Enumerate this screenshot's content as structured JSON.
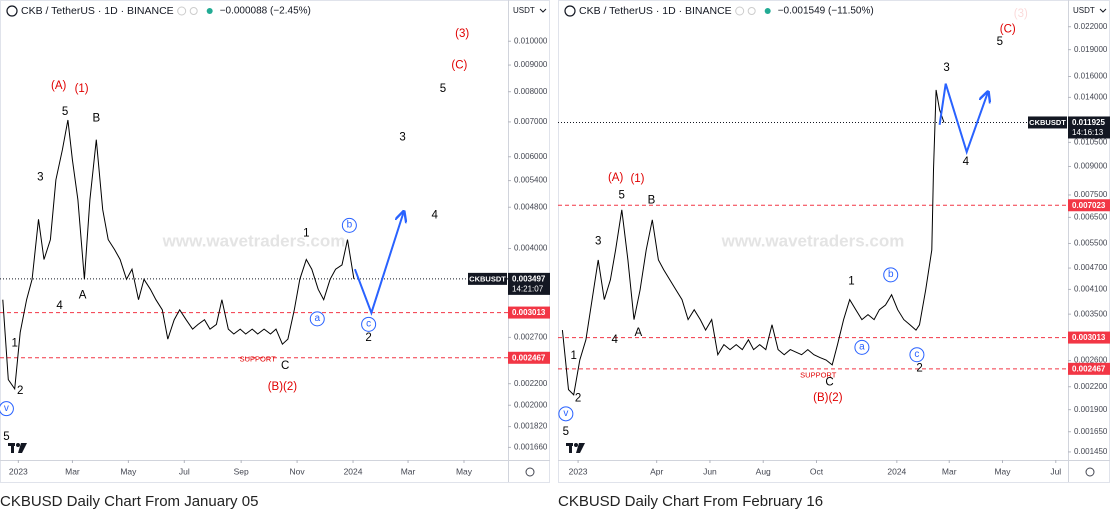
{
  "chart_data": [
    {
      "type": "line",
      "log_scale": true,
      "grid": false,
      "symbol": "CKB / TetherUS · 1D · BINANCE",
      "change": "−0.000088 (−2.45%)",
      "currency": "USDT",
      "caption": "CKBUSD Daily Chart From January 05",
      "watermark": "www.wavetraders.com",
      "color": "#000000",
      "x": [
        -17,
        -11,
        -4,
        2,
        9,
        15,
        22,
        28,
        35,
        41,
        48,
        54,
        59,
        65,
        72,
        78,
        85,
        92,
        98,
        105,
        111,
        118,
        124,
        131,
        137,
        144,
        150,
        157,
        163,
        170,
        176,
        183,
        190,
        196,
        203,
        209,
        216,
        222,
        229,
        235,
        242,
        248,
        255,
        261,
        268,
        275,
        281,
        288,
        294,
        301,
        307,
        314,
        320,
        327,
        333,
        340,
        346,
        353,
        359,
        366
      ],
      "values": [
        0.00319,
        0.00224,
        0.00215,
        0.00276,
        0.00319,
        0.00349,
        0.00455,
        0.00381,
        0.00416,
        0.00542,
        0.00619,
        0.00706,
        0.00592,
        0.00496,
        0.00349,
        0.00496,
        0.00647,
        0.00475,
        0.00416,
        0.00398,
        0.00381,
        0.00349,
        0.00365,
        0.00319,
        0.00349,
        0.00334,
        0.00319,
        0.00305,
        0.00268,
        0.00292,
        0.00305,
        0.00292,
        0.0028,
        0.00286,
        0.00292,
        0.0028,
        0.00286,
        0.00319,
        0.0028,
        0.00274,
        0.0028,
        0.00274,
        0.0028,
        0.00274,
        0.0028,
        0.00274,
        0.0028,
        0.00262,
        0.00268,
        0.00305,
        0.00349,
        0.00381,
        0.00365,
        0.00334,
        0.00319,
        0.00349,
        0.00365,
        0.00372,
        0.00416,
        0.003497
      ],
      "xlim": [
        -20,
        534
      ],
      "ylim": [
        0.00157,
        0.012
      ],
      "xticks": [
        {
          "value": 0,
          "label": "2023"
        },
        {
          "value": 59,
          "label": "Mar"
        },
        {
          "value": 120,
          "label": "May"
        },
        {
          "value": 181,
          "label": "Jul"
        },
        {
          "value": 243,
          "label": "Sep"
        },
        {
          "value": 304,
          "label": "Nov"
        },
        {
          "value": 365,
          "label": "2024"
        },
        {
          "value": 425,
          "label": "Mar"
        },
        {
          "value": 486,
          "label": "May"
        }
      ],
      "yticks": [
        {
          "value": 0.01,
          "label": "0.010000"
        },
        {
          "value": 0.009,
          "label": "0.009000"
        },
        {
          "value": 0.008,
          "label": "0.008000"
        },
        {
          "value": 0.007,
          "label": "0.007000"
        },
        {
          "value": 0.006,
          "label": "0.006000"
        },
        {
          "value": 0.0054,
          "label": "0.005400"
        },
        {
          "value": 0.0048,
          "label": "0.004800"
        },
        {
          "value": 0.004,
          "label": "0.004000"
        },
        {
          "value": 0.0027,
          "label": "0.002700"
        },
        {
          "value": 0.0022,
          "label": "0.002200"
        },
        {
          "value": 0.002,
          "label": "0.002000"
        },
        {
          "value": 0.00182,
          "label": "0.001820"
        },
        {
          "value": 0.00166,
          "label": "0.001660"
        }
      ],
      "levels": [
        {
          "value": 0.003013,
          "color": "#f23645"
        },
        {
          "value": 0.002467,
          "color": "#f23645"
        }
      ],
      "last_price": {
        "value": 0.003497,
        "name": "CKBUSDT",
        "timer": "14:21:07"
      },
      "annotations": [
        {
          "text": "(A)",
          "x": 44,
          "y": 0.0082,
          "color": "#e00000"
        },
        {
          "text": "(1)",
          "x": 69,
          "y": 0.0081,
          "color": "#e00000"
        },
        {
          "text": "5",
          "x": 51,
          "y": 0.00731,
          "color": "#000000"
        },
        {
          "text": "B",
          "x": 85,
          "y": 0.0071,
          "color": "#000000"
        },
        {
          "text": "3",
          "x": 24,
          "y": 0.00547,
          "color": "#000000"
        },
        {
          "text": "4",
          "x": 45,
          "y": 0.0031,
          "color": "#000000"
        },
        {
          "text": "A",
          "x": 70,
          "y": 0.00325,
          "color": "#000000"
        },
        {
          "text": "1",
          "x": -4,
          "y": 0.00263,
          "color": "#000000"
        },
        {
          "text": "2",
          "x": 2,
          "y": 0.00213,
          "color": "#000000"
        },
        {
          "text": "v",
          "x": -13,
          "y": 0.00197,
          "color": "#2962ff",
          "circle": true
        },
        {
          "text": "5",
          "x": -13,
          "y": 0.00174,
          "color": "#000000"
        },
        {
          "text": "SUPPORT",
          "x": 261,
          "y": 0.00245,
          "color": "#e00000",
          "small": true
        },
        {
          "text": "C",
          "x": 291,
          "y": 0.00238,
          "color": "#000000"
        },
        {
          "text": "(B)(2)",
          "x": 288,
          "y": 0.00217,
          "color": "#e00000"
        },
        {
          "text": "1",
          "x": 314,
          "y": 0.00427,
          "color": "#000000"
        },
        {
          "text": "a",
          "x": 326,
          "y": 0.00293,
          "color": "#2962ff",
          "circle": true
        },
        {
          "text": "b",
          "x": 361,
          "y": 0.00443,
          "color": "#2962ff",
          "circle": true
        },
        {
          "text": "c",
          "x": 382,
          "y": 0.00286,
          "color": "#2962ff",
          "circle": true
        },
        {
          "text": "2",
          "x": 382,
          "y": 0.00269,
          "color": "#000000"
        },
        {
          "text": "3",
          "x": 419,
          "y": 0.00653,
          "color": "#000000"
        },
        {
          "text": "4",
          "x": 454,
          "y": 0.00463,
          "color": "#000000"
        },
        {
          "text": "5",
          "x": 463,
          "y": 0.0081,
          "color": "#000000"
        },
        {
          "text": "(3)",
          "x": 484,
          "y": 0.01033,
          "color": "#e00000"
        },
        {
          "text": "(C)",
          "x": 481,
          "y": 0.00898,
          "color": "#e00000"
        }
      ],
      "projection": {
        "color": "#2962ff",
        "x": [
          367,
          385,
          420
        ],
        "y": [
          0.00365,
          0.00301,
          0.00469
        ]
      }
    },
    {
      "type": "line",
      "log_scale": true,
      "grid": false,
      "symbol": "CKB / TetherUS · 1D · BINANCE",
      "change": "−0.001549 (−11.50%)",
      "currency": "USDT",
      "caption": "CKBUSD Daily Chart From February 16",
      "watermark": "www.wavetraders.com",
      "color": "#000000",
      "x": [
        -18,
        -11,
        -5,
        2,
        9,
        16,
        23,
        30,
        37,
        43,
        50,
        57,
        64,
        71,
        78,
        85,
        92,
        98,
        105,
        112,
        119,
        126,
        133,
        140,
        146,
        153,
        160,
        167,
        174,
        181,
        188,
        195,
        201,
        208,
        215,
        222,
        229,
        236,
        243,
        249,
        256,
        263,
        270,
        277,
        284,
        291,
        297,
        304,
        311,
        318,
        325,
        332,
        339,
        345,
        352,
        359,
        366,
        373,
        380,
        387,
        391,
        398,
        405,
        407,
        410,
        414,
        419
      ],
      "values": [
        0.00316,
        0.00216,
        0.00209,
        0.00261,
        0.00297,
        0.00384,
        0.00495,
        0.00384,
        0.00436,
        0.00528,
        0.00682,
        0.00495,
        0.00338,
        0.00409,
        0.00528,
        0.0064,
        0.00495,
        0.00465,
        0.00436,
        0.00409,
        0.00384,
        0.00338,
        0.0036,
        0.00338,
        0.00316,
        0.00338,
        0.0027,
        0.00288,
        0.00279,
        0.00288,
        0.00279,
        0.00297,
        0.00279,
        0.00288,
        0.00279,
        0.00327,
        0.00279,
        0.0027,
        0.00279,
        0.00275,
        0.0027,
        0.00279,
        0.0027,
        0.00265,
        0.00261,
        0.00253,
        0.00288,
        0.00338,
        0.00384,
        0.0036,
        0.00338,
        0.00349,
        0.00338,
        0.0036,
        0.00371,
        0.00396,
        0.0036,
        0.00338,
        0.00327,
        0.00316,
        0.00327,
        0.00409,
        0.00528,
        0.00881,
        0.01469,
        0.01292,
        0.011925
      ],
      "xlim": [
        -23,
        561
      ],
      "ylim": [
        0.001377,
        0.0261
      ],
      "xticks": [
        {
          "value": 0,
          "label": "2023"
        },
        {
          "value": 90,
          "label": "Apr"
        },
        {
          "value": 151,
          "label": "Jun"
        },
        {
          "value": 212,
          "label": "Aug"
        },
        {
          "value": 273,
          "label": "Oct"
        },
        {
          "value": 365,
          "label": "2024"
        },
        {
          "value": 425,
          "label": "Mar"
        },
        {
          "value": 486,
          "label": "May"
        },
        {
          "value": 547,
          "label": "Jul"
        }
      ],
      "yticks": [
        {
          "value": 0.022,
          "label": "0.022000"
        },
        {
          "value": 0.019,
          "label": "0.019000"
        },
        {
          "value": 0.016,
          "label": "0.016000"
        },
        {
          "value": 0.014,
          "label": "0.014000"
        },
        {
          "value": 0.0105,
          "label": "0.010500"
        },
        {
          "value": 0.009,
          "label": "0.009000"
        },
        {
          "value": 0.0075,
          "label": "0.007500"
        },
        {
          "value": 0.0065,
          "label": "0.006500"
        },
        {
          "value": 0.0055,
          "label": "0.005500"
        },
        {
          "value": 0.0047,
          "label": "0.004700"
        },
        {
          "value": 0.0041,
          "label": "0.004100"
        },
        {
          "value": 0.0035,
          "label": "0.003500"
        },
        {
          "value": 0.0026,
          "label": "0.002600"
        },
        {
          "value": 0.0022,
          "label": "0.002200"
        },
        {
          "value": 0.0019,
          "label": "0.001900"
        },
        {
          "value": 0.00165,
          "label": "0.001650"
        },
        {
          "value": 0.00145,
          "label": "0.001450"
        }
      ],
      "levels": [
        {
          "value": 0.007023,
          "color": "#f23645"
        },
        {
          "value": 0.003013,
          "color": "#f23645"
        },
        {
          "value": 0.002467,
          "color": "#f23645"
        }
      ],
      "last_price": {
        "value": 0.011925,
        "name": "CKBUSDT",
        "timer": "14:16:13"
      },
      "annotations": [
        {
          "text": "(A)",
          "x": 43,
          "y": 0.00837,
          "color": "#e00000"
        },
        {
          "text": "(1)",
          "x": 68,
          "y": 0.0083,
          "color": "#e00000"
        },
        {
          "text": "5",
          "x": 50,
          "y": 0.00747,
          "color": "#000000"
        },
        {
          "text": "B",
          "x": 84,
          "y": 0.00723,
          "color": "#000000"
        },
        {
          "text": "3",
          "x": 23,
          "y": 0.00557,
          "color": "#000000"
        },
        {
          "text": "4",
          "x": 42,
          "y": 0.00297,
          "color": "#000000"
        },
        {
          "text": "A",
          "x": 69,
          "y": 0.0031,
          "color": "#000000"
        },
        {
          "text": "1",
          "x": -5,
          "y": 0.00268,
          "color": "#000000"
        },
        {
          "text": "2",
          "x": 0,
          "y": 0.00204,
          "color": "#000000"
        },
        {
          "text": "v",
          "x": -14,
          "y": 0.00185,
          "color": "#2962ff",
          "circle": true
        },
        {
          "text": "5",
          "x": -14,
          "y": 0.00165,
          "color": "#000000"
        },
        {
          "text": "SUPPORT",
          "x": 275,
          "y": 0.00236,
          "color": "#e00000",
          "small": true
        },
        {
          "text": "C",
          "x": 288,
          "y": 0.00226,
          "color": "#000000"
        },
        {
          "text": "(B)(2)",
          "x": 286,
          "y": 0.00205,
          "color": "#e00000"
        },
        {
          "text": "1",
          "x": 313,
          "y": 0.00431,
          "color": "#000000"
        },
        {
          "text": "a",
          "x": 325,
          "y": 0.00283,
          "color": "#2962ff",
          "circle": true
        },
        {
          "text": "b",
          "x": 358,
          "y": 0.0045,
          "color": "#2962ff",
          "circle": true
        },
        {
          "text": "c",
          "x": 388,
          "y": 0.0027,
          "color": "#2962ff",
          "circle": true
        },
        {
          "text": "2",
          "x": 391,
          "y": 0.00247,
          "color": "#000000"
        },
        {
          "text": "3",
          "x": 422,
          "y": 0.0169,
          "color": "#000000"
        },
        {
          "text": "4",
          "x": 444,
          "y": 0.00927,
          "color": "#000000"
        },
        {
          "text": "5",
          "x": 483,
          "y": 0.01995,
          "color": "#000000"
        },
        {
          "text": "(C)",
          "x": 492,
          "y": 0.0216,
          "color": "#e00000"
        },
        {
          "text": "(3)",
          "x": 507,
          "y": 0.0239,
          "color": "#e00000"
        }
      ],
      "projection": {
        "color": "#2962ff",
        "x": [
          414,
          421,
          445,
          469
        ],
        "y": [
          0.01175,
          0.01528,
          0.00988,
          0.01442
        ]
      }
    }
  ]
}
